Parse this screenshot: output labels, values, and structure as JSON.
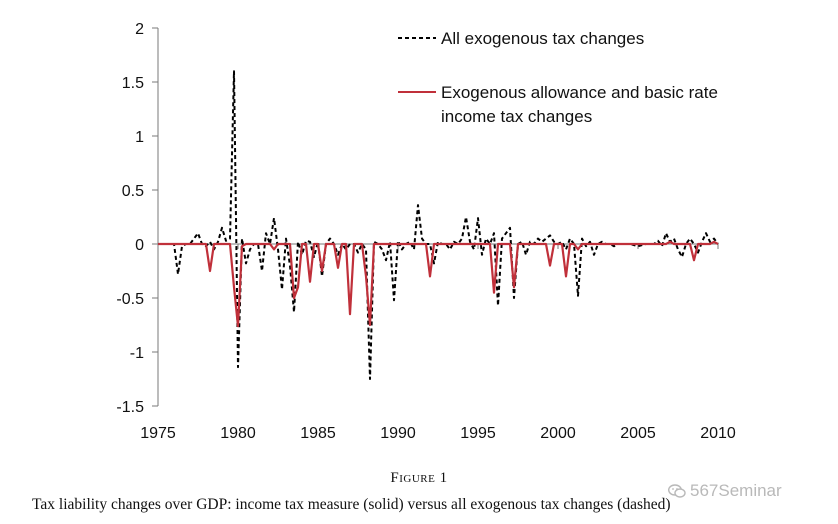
{
  "chart_data": {
    "type": "line",
    "x_ticks": [
      "1975",
      "1980",
      "1985",
      "1990",
      "1995",
      "2000",
      "2005",
      "2010"
    ],
    "y_ticks": [
      "2",
      "1.5",
      "1",
      "0.5",
      "0",
      "-0.5",
      "-1",
      "-1.5"
    ],
    "xlim": [
      1975,
      2010
    ],
    "ylim": [
      -1.5,
      2
    ],
    "grid": false,
    "legend_position": "top-right",
    "series": [
      {
        "name": "All exogenous tax changes",
        "style": "dashed",
        "color": "#000000",
        "points": [
          [
            1975.0,
            0
          ],
          [
            1976.0,
            0
          ],
          [
            1976.25,
            -0.28
          ],
          [
            1976.5,
            -0.02
          ],
          [
            1976.75,
            0
          ],
          [
            1977.0,
            0
          ],
          [
            1977.25,
            0.05
          ],
          [
            1977.5,
            0.1
          ],
          [
            1977.75,
            0
          ],
          [
            1978.0,
            -0.02
          ],
          [
            1978.25,
            0.02
          ],
          [
            1978.5,
            -0.05
          ],
          [
            1978.75,
            0.02
          ],
          [
            1979.0,
            0.15
          ],
          [
            1979.25,
            0.03
          ],
          [
            1979.5,
            0.05
          ],
          [
            1979.75,
            1.6
          ],
          [
            1980.0,
            -1.14
          ],
          [
            1980.25,
            0.05
          ],
          [
            1980.5,
            -0.18
          ],
          [
            1980.75,
            -0.05
          ],
          [
            1981.0,
            0
          ],
          [
            1981.25,
            0
          ],
          [
            1981.5,
            -0.25
          ],
          [
            1981.75,
            0.1
          ],
          [
            1982.0,
            0
          ],
          [
            1982.25,
            0.24
          ],
          [
            1982.5,
            -0.05
          ],
          [
            1982.75,
            -0.42
          ],
          [
            1983.0,
            0.05
          ],
          [
            1983.25,
            -0.2
          ],
          [
            1983.5,
            -0.63
          ],
          [
            1983.75,
            0.02
          ],
          [
            1984.0,
            -0.1
          ],
          [
            1984.25,
            0.03
          ],
          [
            1984.5,
            0.02
          ],
          [
            1984.75,
            -0.12
          ],
          [
            1985.0,
            0.02
          ],
          [
            1985.25,
            -0.3
          ],
          [
            1985.5,
            0
          ],
          [
            1985.75,
            0.05
          ],
          [
            1986.0,
            0
          ],
          [
            1986.25,
            -0.1
          ],
          [
            1986.5,
            0
          ],
          [
            1986.75,
            -0.05
          ],
          [
            1987.0,
            0
          ],
          [
            1987.25,
            0
          ],
          [
            1987.5,
            -0.08
          ],
          [
            1987.75,
            0
          ],
          [
            1988.0,
            -0.05
          ],
          [
            1988.25,
            -1.25
          ],
          [
            1988.5,
            0.02
          ],
          [
            1988.75,
            0
          ],
          [
            1989.0,
            -0.05
          ],
          [
            1989.25,
            -0.15
          ],
          [
            1989.5,
            0.02
          ],
          [
            1989.75,
            -0.52
          ],
          [
            1990.0,
            0.03
          ],
          [
            1990.25,
            -0.05
          ],
          [
            1990.5,
            0
          ],
          [
            1990.75,
            0.02
          ],
          [
            1991.0,
            -0.05
          ],
          [
            1991.25,
            0.36
          ],
          [
            1991.5,
            0.05
          ],
          [
            1991.75,
            0
          ],
          [
            1992.0,
            0
          ],
          [
            1992.25,
            -0.18
          ],
          [
            1992.5,
            0.02
          ],
          [
            1992.75,
            0
          ],
          [
            1993.0,
            0
          ],
          [
            1993.25,
            -0.05
          ],
          [
            1993.5,
            0.02
          ],
          [
            1993.75,
            0
          ],
          [
            1994.0,
            0.05
          ],
          [
            1994.25,
            0.25
          ],
          [
            1994.5,
            0.02
          ],
          [
            1994.75,
            -0.05
          ],
          [
            1995.0,
            0.24
          ],
          [
            1995.25,
            -0.1
          ],
          [
            1995.5,
            0.05
          ],
          [
            1995.75,
            0
          ],
          [
            1996.0,
            0.1
          ],
          [
            1996.25,
            -0.57
          ],
          [
            1996.5,
            0.05
          ],
          [
            1996.75,
            0.1
          ],
          [
            1997.0,
            0.15
          ],
          [
            1997.25,
            -0.5
          ],
          [
            1997.5,
            0
          ],
          [
            1997.75,
            0.02
          ],
          [
            1998.0,
            -0.1
          ],
          [
            1998.25,
            0.02
          ],
          [
            1998.5,
            0
          ],
          [
            1998.75,
            0.05
          ],
          [
            1999.0,
            0.02
          ],
          [
            1999.25,
            0.05
          ],
          [
            1999.5,
            0.08
          ],
          [
            1999.75,
            0.02
          ],
          [
            2000.0,
            0
          ],
          [
            2000.25,
            0.02
          ],
          [
            2000.5,
            -0.05
          ],
          [
            2000.75,
            0.05
          ],
          [
            2001.0,
            0
          ],
          [
            2001.25,
            -0.48
          ],
          [
            2001.5,
            0.05
          ],
          [
            2001.75,
            -0.02
          ],
          [
            2002.0,
            0.02
          ],
          [
            2002.25,
            -0.1
          ],
          [
            2002.5,
            0
          ],
          [
            2002.75,
            0.02
          ],
          [
            2003.0,
            0
          ],
          [
            2003.25,
            0
          ],
          [
            2003.5,
            -0.02
          ],
          [
            2003.75,
            0
          ],
          [
            2004.0,
            0
          ],
          [
            2004.5,
            0
          ],
          [
            2005.0,
            -0.02
          ],
          [
            2005.5,
            0
          ],
          [
            2006.0,
            0
          ],
          [
            2006.25,
            0.03
          ],
          [
            2006.5,
            -0.02
          ],
          [
            2006.75,
            0.1
          ],
          [
            2007.0,
            0.02
          ],
          [
            2007.25,
            0.05
          ],
          [
            2007.5,
            -0.05
          ],
          [
            2007.75,
            -0.12
          ],
          [
            2008.0,
            0
          ],
          [
            2008.25,
            0.05
          ],
          [
            2008.5,
            0
          ],
          [
            2008.75,
            -0.08
          ],
          [
            2009.0,
            0.02
          ],
          [
            2009.25,
            0.1
          ],
          [
            2009.5,
            0.02
          ],
          [
            2009.75,
            0.05
          ],
          [
            2010.0,
            0
          ]
        ]
      },
      {
        "name": "Exogenous allowance and basic rate income tax changes",
        "style": "solid",
        "color": "#c0303a",
        "points": [
          [
            1975.0,
            0
          ],
          [
            1978.0,
            0
          ],
          [
            1978.25,
            -0.25
          ],
          [
            1978.5,
            0
          ],
          [
            1979.5,
            0
          ],
          [
            1979.75,
            -0.4
          ],
          [
            1980.0,
            -0.76
          ],
          [
            1980.25,
            -0.02
          ],
          [
            1980.5,
            0
          ],
          [
            1982.0,
            0
          ],
          [
            1982.25,
            -0.05
          ],
          [
            1982.5,
            0
          ],
          [
            1983.25,
            0
          ],
          [
            1983.5,
            -0.5
          ],
          [
            1983.75,
            -0.4
          ],
          [
            1984.0,
            0
          ],
          [
            1984.25,
            0
          ],
          [
            1984.5,
            -0.35
          ],
          [
            1984.75,
            0
          ],
          [
            1985.0,
            0
          ],
          [
            1985.25,
            -0.25
          ],
          [
            1985.5,
            0
          ],
          [
            1986.0,
            0
          ],
          [
            1986.25,
            -0.22
          ],
          [
            1986.5,
            0
          ],
          [
            1986.75,
            0
          ],
          [
            1987.0,
            -0.65
          ],
          [
            1987.25,
            0
          ],
          [
            1987.75,
            0
          ],
          [
            1988.0,
            -0.3
          ],
          [
            1988.25,
            -0.75
          ],
          [
            1988.5,
            0
          ],
          [
            1991.75,
            0
          ],
          [
            1992.0,
            -0.3
          ],
          [
            1992.25,
            0
          ],
          [
            1995.75,
            0
          ],
          [
            1996.0,
            -0.45
          ],
          [
            1996.25,
            0
          ],
          [
            1997.0,
            0
          ],
          [
            1997.25,
            -0.4
          ],
          [
            1997.5,
            0
          ],
          [
            1999.25,
            0
          ],
          [
            1999.5,
            -0.2
          ],
          [
            1999.75,
            0
          ],
          [
            2000.25,
            0
          ],
          [
            2000.5,
            -0.3
          ],
          [
            2000.75,
            0
          ],
          [
            2001.0,
            0
          ],
          [
            2001.25,
            -0.05
          ],
          [
            2001.5,
            0
          ],
          [
            2006.75,
            0
          ],
          [
            2007.0,
            0.02
          ],
          [
            2007.25,
            0
          ],
          [
            2008.25,
            0
          ],
          [
            2008.5,
            -0.15
          ],
          [
            2008.75,
            0
          ],
          [
            2009.5,
            0
          ],
          [
            2009.75,
            0.02
          ],
          [
            2010.0,
            0
          ]
        ]
      }
    ],
    "legend": {
      "dashed_label": "All exogenous tax changes",
      "solid_label_line1": "Exogenous allowance and basic rate",
      "solid_label_line2": "income tax changes"
    }
  },
  "figure": {
    "title": "Figure 1",
    "caption": "Tax liability changes over GDP: income tax measure (solid) versus all exogenous tax changes (dashed)"
  },
  "watermark": {
    "text": "567Seminar",
    "icon": "wechat-icon"
  }
}
